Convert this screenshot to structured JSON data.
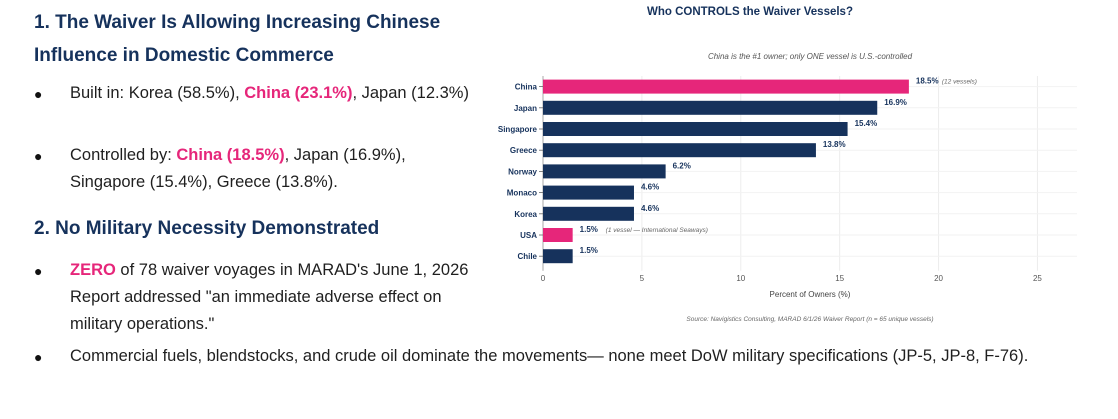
{
  "slide": {
    "heading1": "1. The Waiver Is Allowing Increasing Chinese Influence in Domestic Commerce",
    "bullet1": {
      "a": "Built in: Korea (58.5%), ",
      "b": "China (23.1%)",
      "c": ", Japan (12.3%)"
    },
    "bullet2": {
      "a": "Controlled by: ",
      "b": "China (18.5%)",
      "c": ", Japan (16.9%), Singapore (15.4%), Greece (13.8%)."
    },
    "heading2": "2. No Military Necessity Demonstrated",
    "bullet3": {
      "a": "ZERO",
      "b": " of 78 waiver voyages in MARAD's June 1, 2026 Report addressed \"an immediate adverse effect on military operations.\""
    },
    "bullet4": "Commercial fuels, blendstocks, and crude oil dominate the movements— none meet DoW military specifications (JP-5, JP-8, F-76).",
    "bullet_glyph": "●"
  },
  "colors": {
    "navy": "#16325c",
    "pink": "#e6267a"
  },
  "chart_data": {
    "type": "bar",
    "orientation": "horizontal",
    "title": "Who CONTROLS the Waiver Vessels?",
    "subtitle": "China is the #1 owner; only ONE vessel is U.S.-controlled",
    "xlabel": "Percent of Owners (%)",
    "ylabel": "",
    "xlim": [
      0,
      27
    ],
    "xticks": [
      0,
      5,
      10,
      15,
      20,
      25
    ],
    "grid": true,
    "source": "Source: Navigistics Consulting, MARAD 6/1/26 Waiver Report (n = 65 unique vessels)",
    "categories": [
      "China",
      "Japan",
      "Singapore",
      "Greece",
      "Norway",
      "Monaco",
      "Korea",
      "USA",
      "Chile"
    ],
    "values": [
      18.5,
      16.9,
      15.4,
      13.8,
      6.2,
      4.6,
      4.6,
      1.5,
      1.5
    ],
    "data_labels": [
      "18.5%",
      "16.9%",
      "15.4%",
      "13.8%",
      "6.2%",
      "4.6%",
      "4.6%",
      "1.5%",
      "1.5%"
    ],
    "annotations": [
      "(12 vessels)",
      "",
      "",
      "",
      "",
      "",
      "",
      "(1 vessel — International Seaways)",
      ""
    ],
    "highlight": [
      true,
      false,
      false,
      false,
      false,
      false,
      false,
      true,
      false
    ]
  }
}
